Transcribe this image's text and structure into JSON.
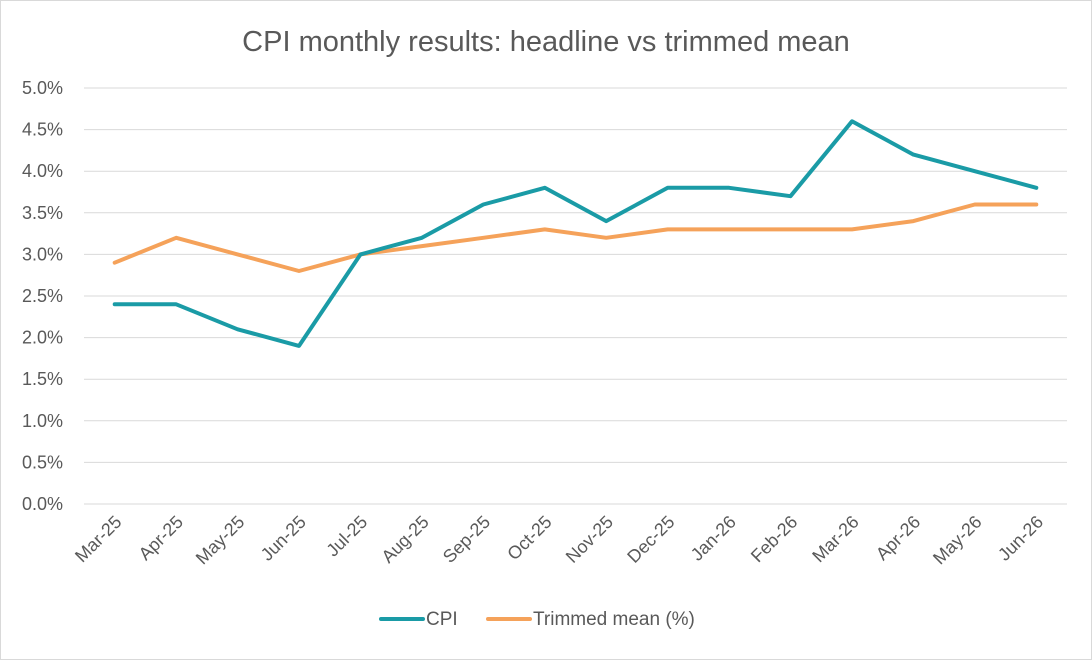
{
  "chart_data": {
    "type": "line",
    "title": "CPI monthly results: headline vs trimmed mean",
    "xlabel": "",
    "ylabel": "",
    "categories": [
      "Mar-25",
      "Apr-25",
      "May-25",
      "Jun-25",
      "Jul-25",
      "Aug-25",
      "Sep-25",
      "Oct-25",
      "Nov-25",
      "Dec-25",
      "Jan-26",
      "Feb-26",
      "Mar-26",
      "Apr-26",
      "May-26",
      "Jun-26"
    ],
    "ylim": [
      0,
      5.0
    ],
    "yticks": [
      0,
      0.5,
      1.0,
      1.5,
      2.0,
      2.5,
      3.0,
      3.5,
      4.0,
      4.5,
      5.0
    ],
    "ytick_labels": [
      "0.0%",
      "0.5%",
      "1.0%",
      "1.5%",
      "2.0%",
      "2.5%",
      "3.0%",
      "3.5%",
      "4.0%",
      "4.5%",
      "5.0%"
    ],
    "grid": true,
    "legend_position": "bottom",
    "series": [
      {
        "name": "CPI",
        "color": "#1a9ba6",
        "values": [
          2.4,
          2.4,
          2.1,
          1.9,
          3.0,
          3.2,
          3.6,
          3.8,
          3.4,
          3.8,
          3.8,
          3.7,
          4.6,
          4.2,
          4.0,
          3.8
        ]
      },
      {
        "name": "Trimmed mean (%)",
        "color": "#f5a25a",
        "values": [
          2.9,
          3.2,
          3.0,
          2.8,
          3.0,
          3.1,
          3.2,
          3.3,
          3.2,
          3.3,
          3.3,
          3.3,
          3.3,
          3.4,
          3.6,
          3.6
        ]
      }
    ]
  }
}
